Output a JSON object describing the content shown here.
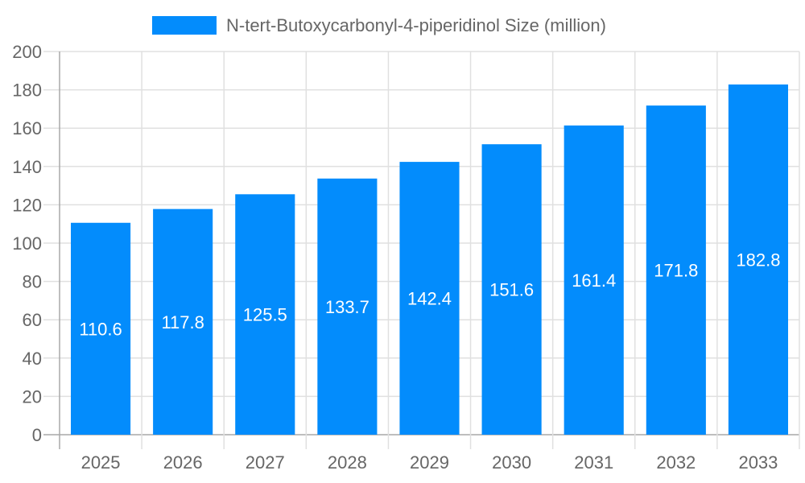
{
  "chart_data": {
    "type": "bar",
    "categories": [
      "2025",
      "2026",
      "2027",
      "2028",
      "2029",
      "2030",
      "2031",
      "2032",
      "2033"
    ],
    "series": [
      {
        "name": "N-tert-Butoxycarbonyl-4-piperidinol Size (million)",
        "values": [
          110.6,
          117.8,
          125.5,
          133.7,
          142.4,
          151.6,
          161.4,
          171.8,
          182.8
        ]
      }
    ],
    "ylim": [
      0,
      200
    ],
    "yticks": [
      0,
      20,
      40,
      60,
      80,
      100,
      120,
      140,
      160,
      180,
      200
    ],
    "grid": true,
    "legend": "top",
    "data_labels": true,
    "colors": {
      "bar": "#038cfc",
      "grid": "#e0e0e0",
      "axis": "#a8a8a8",
      "text": "#666666",
      "label": "#ffffff"
    }
  }
}
